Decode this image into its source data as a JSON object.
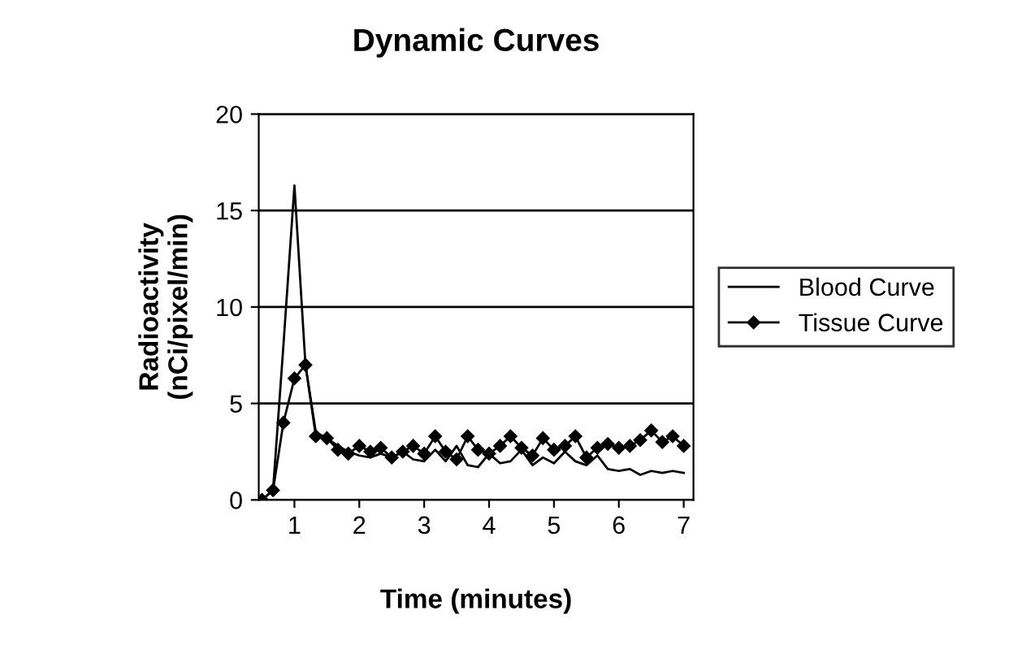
{
  "chart_data": {
    "type": "line",
    "title": "Dynamic Curves",
    "xlabel": "Time (minutes)",
    "ylabel": "Radioactivity\n(nCi/pixel/min)",
    "x": [
      0.5,
      0.67,
      0.83,
      1,
      1.17,
      1.33,
      1.5,
      1.67,
      1.83,
      2,
      2.17,
      2.33,
      2.5,
      2.67,
      2.83,
      3,
      3.17,
      3.33,
      3.5,
      3.67,
      3.83,
      4,
      4.17,
      4.33,
      4.5,
      4.67,
      4.83,
      5,
      5.17,
      5.33,
      5.5,
      5.67,
      5.83,
      6,
      6.17,
      6.33,
      6.5,
      6.67,
      6.83,
      7
    ],
    "series": [
      {
        "name": "Blood Curve",
        "color": "#000000",
        "marker": "none",
        "values": [
          0,
          0.5,
          8,
          16.3,
          7,
          3.5,
          3.2,
          2.8,
          2.5,
          2.3,
          2.2,
          2.4,
          2.2,
          2.5,
          2.1,
          2.0,
          2.6,
          2.0,
          2.8,
          1.8,
          1.7,
          2.4,
          1.9,
          2.0,
          2.6,
          1.8,
          2.2,
          1.9,
          2.5,
          2.0,
          1.8,
          2.3,
          1.6,
          1.5,
          1.6,
          1.3,
          1.5,
          1.4,
          1.5,
          1.4
        ]
      },
      {
        "name": "Tissue Curve",
        "color": "#000000",
        "marker": "diamond",
        "values": [
          0,
          0.5,
          4,
          6.3,
          7.0,
          3.3,
          3.2,
          2.6,
          2.4,
          2.8,
          2.5,
          2.7,
          2.2,
          2.5,
          2.8,
          2.4,
          3.3,
          2.5,
          2.1,
          3.3,
          2.6,
          2.4,
          2.8,
          3.3,
          2.7,
          2.3,
          3.2,
          2.6,
          2.8,
          3.3,
          2.2,
          2.7,
          2.9,
          2.7,
          2.8,
          3.1,
          3.6,
          3.0,
          3.3,
          2.8
        ]
      }
    ],
    "xlim": [
      0.45,
      7.15
    ],
    "xticks": [
      1,
      2,
      3,
      4,
      5,
      6,
      7
    ],
    "ylim": [
      0,
      20
    ],
    "yticks": [
      0,
      5,
      10,
      15,
      20
    ],
    "grid": "y",
    "legend": "right",
    "line_style": "solid"
  }
}
